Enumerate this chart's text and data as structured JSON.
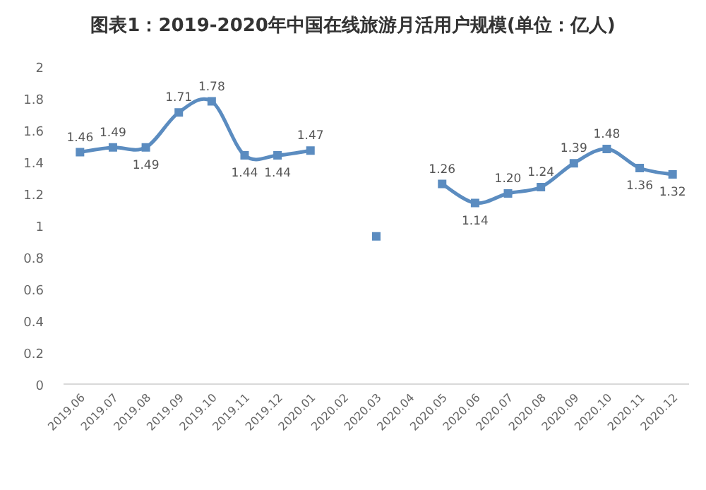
{
  "chart_data": {
    "type": "line",
    "title": "图表1：2019-2020年中国在线旅游月活用户规模(单位：亿人)",
    "categories": [
      "2019.06",
      "2019.07",
      "2019.08",
      "2019.09",
      "2019.10",
      "2019.11",
      "2019.12",
      "2020.01",
      "2020.02",
      "2020.03",
      "2020.04",
      "2020.05",
      "2020.06",
      "2020.07",
      "2020.08",
      "2020.09",
      "2020.10",
      "2020.11",
      "2020.12"
    ],
    "values": [
      1.46,
      1.49,
      1.49,
      1.71,
      1.78,
      1.44,
      1.44,
      1.47,
      null,
      0.93,
      null,
      1.26,
      1.14,
      1.2,
      1.24,
      1.39,
      1.48,
      1.36,
      1.32
    ],
    "value_labels": [
      "1.46",
      "1.49",
      "1.49",
      "1.71",
      "1.78",
      "1.44",
      "1.44",
      "1.47",
      null,
      null,
      null,
      "1.26",
      "1.14",
      "1.20",
      "1.24",
      "1.39",
      "1.48",
      "1.36",
      "1.32"
    ],
    "color": "#5b8cc0",
    "marker": "square",
    "line_style": "solid",
    "grid": false,
    "ylim": [
      0,
      2
    ],
    "yticks": [
      0,
      0.2,
      0.4,
      0.6,
      0.8,
      1,
      1.2,
      1.4,
      1.6,
      1.8,
      2
    ]
  }
}
